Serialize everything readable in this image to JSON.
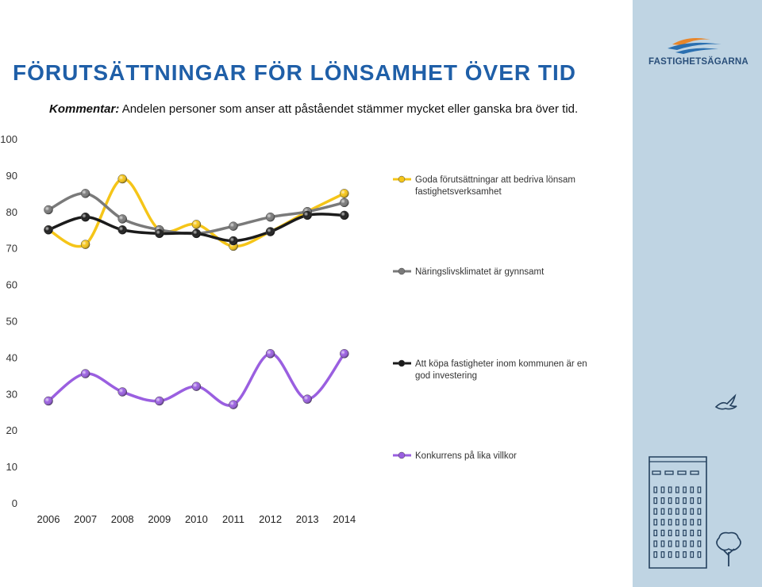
{
  "title": "FÖRUTSÄTTNINGAR FÖR LÖNSAMHET ÖVER TID",
  "comment": {
    "label": "Kommentar:",
    "text": "Andelen personer som anser att påståendet stämmer mycket eller ganska bra över tid."
  },
  "logo": {
    "text": "FASTIGHETSÄGARNA"
  },
  "colors": {
    "accent": "#1f5fa8",
    "panel": "#bfd4e3",
    "series": [
      "#f5c518",
      "#7a7a7a",
      "#1b1b1b",
      "#9a5fe0"
    ]
  },
  "chart_data": {
    "type": "line",
    "categories": [
      "2006",
      "2007",
      "2008",
      "2009",
      "2010",
      "2011",
      "2012",
      "2013",
      "2014"
    ],
    "ylim": [
      0,
      100
    ],
    "yticks": [
      "0",
      "10",
      "20",
      "30",
      "40",
      "50",
      "60",
      "70",
      "80",
      "90",
      "100"
    ],
    "legend_position": "right",
    "series": [
      {
        "name": "Goda förutsättningar att bedriva lönsam fastighetsverksamhet",
        "color": "#f5c518",
        "values": [
          75,
          71,
          89,
          75,
          76.5,
          70.5,
          74.5,
          80,
          85
        ]
      },
      {
        "name": "Näringslivsklimatet är gynnsamt",
        "color": "#7a7a7a",
        "values": [
          80.5,
          85,
          78,
          75,
          74,
          76,
          78.5,
          80,
          82.5
        ]
      },
      {
        "name": "Att köpa fastigheter inom kommunen är en god investering",
        "color": "#1b1b1b",
        "values": [
          75,
          78.5,
          75,
          74,
          74,
          72,
          74.5,
          79,
          79
        ]
      },
      {
        "name": "Konkurrens på lika villkor",
        "color": "#9a5fe0",
        "values": [
          28,
          35.5,
          30.5,
          28,
          32,
          27,
          41,
          28.5,
          41
        ]
      }
    ]
  }
}
